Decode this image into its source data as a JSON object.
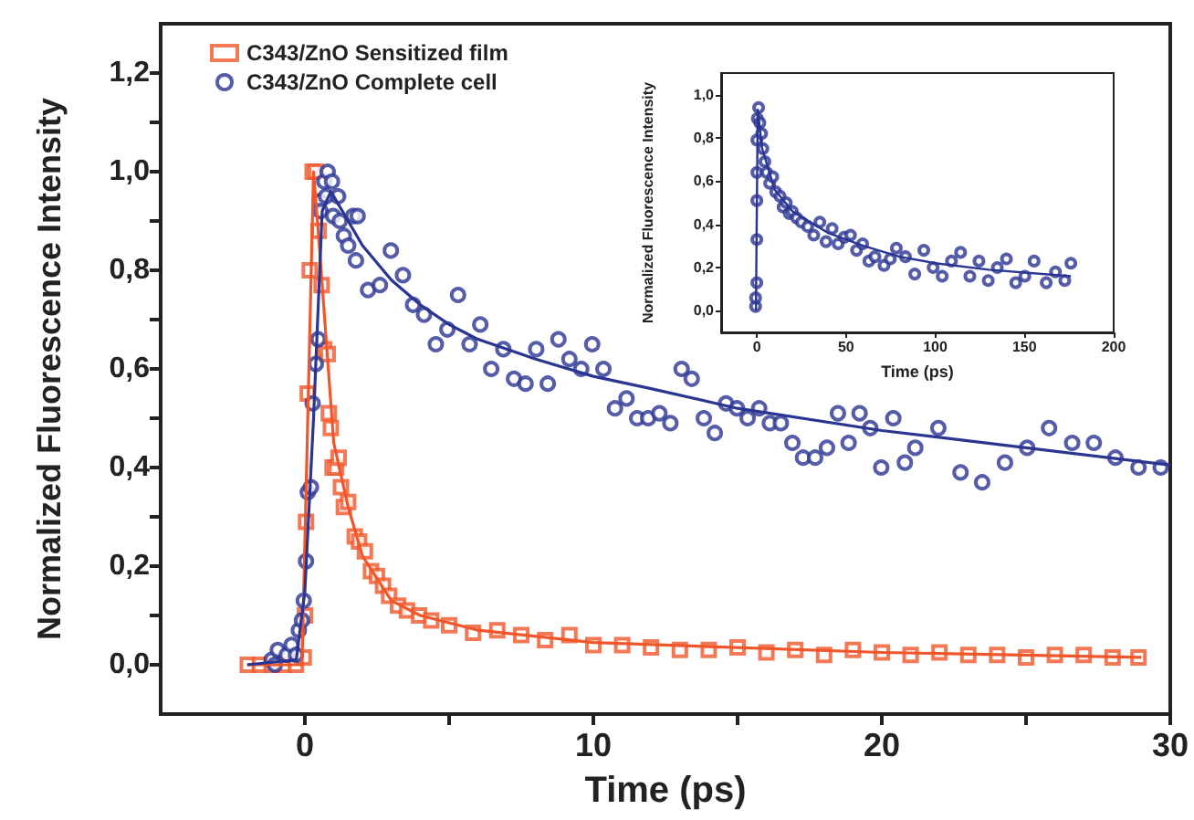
{
  "chart_data": [
    {
      "type": "scatter",
      "xlabel": "Time (ps)",
      "ylabel": "Normalized Fluorescence Intensity",
      "xlim": [
        -5,
        30
      ],
      "ylim": [
        -0.1,
        1.3
      ],
      "xticks": [
        0,
        {
          "value": 5,
          "label": null
        },
        10,
        {
          "value": 15,
          "label": null
        },
        20,
        {
          "value": 25,
          "label": null
        },
        30
      ],
      "yticks": [
        {
          "value": 0,
          "label": "0,0"
        },
        {
          "value": 0.1,
          "label": null
        },
        {
          "value": 0.2,
          "label": "0,2"
        },
        {
          "value": 0.3,
          "label": null
        },
        {
          "value": 0.4,
          "label": "0,4"
        },
        {
          "value": 0.5,
          "label": null
        },
        {
          "value": 0.6,
          "label": "0,6"
        },
        {
          "value": 0.7,
          "label": null
        },
        {
          "value": 0.8,
          "label": "0,8"
        },
        {
          "value": 0.9,
          "label": null
        },
        {
          "value": 1,
          "label": "1,0"
        },
        {
          "value": 1.1,
          "label": null
        },
        {
          "value": 1.2,
          "label": "1,2"
        }
      ],
      "legend": "top left",
      "series": [
        {
          "name": "C343/ZnO Sensitized film",
          "marker": "square",
          "color": "#f0562a",
          "x": [
            -1.98,
            -1.56,
            -1.15,
            -0.73,
            -0.31,
            -0.04,
            0,
            0.04,
            0.1,
            0.17,
            0.27,
            0.38,
            0.48,
            0.58,
            0.67,
            0.79,
            0.83,
            0.9,
            0.96,
            1.08,
            1.17,
            1.25,
            1.35,
            1.5,
            1.73,
            1.88,
            2.08,
            2.29,
            2.5,
            2.71,
            2.92,
            3.23,
            3.54,
            3.96,
            4.38,
            5,
            5.83,
            6.67,
            7.5,
            8.33,
            9.17,
            10,
            11,
            12,
            13,
            14,
            15,
            16,
            17,
            18,
            19,
            20,
            21,
            22,
            23,
            24,
            25,
            26,
            27,
            28,
            28.9
          ],
          "values": [
            0,
            0,
            0,
            0,
            0,
            0.015,
            0.1,
            0.29,
            0.55,
            0.8,
            1,
            1,
            0.88,
            0.77,
            0.64,
            0.63,
            0.51,
            0.48,
            0.4,
            0.4,
            0.42,
            0.36,
            0.32,
            0.33,
            0.26,
            0.25,
            0.23,
            0.19,
            0.18,
            0.16,
            0.14,
            0.12,
            0.11,
            0.1,
            0.09,
            0.08,
            0.065,
            0.07,
            0.06,
            0.05,
            0.06,
            0.04,
            0.04,
            0.035,
            0.03,
            0.03,
            0.035,
            0.025,
            0.03,
            0.02,
            0.03,
            0.025,
            0.02,
            0.025,
            0.02,
            0.02,
            0.015,
            0.02,
            0.02,
            0.015,
            0.015
          ]
        },
        {
          "type": "line",
          "marker": "none",
          "color": "#f0562a",
          "x": [
            -2,
            -0.1,
            0.1,
            0.3,
            0.5,
            1,
            1.5,
            2,
            3,
            4,
            6,
            10,
            20,
            29
          ],
          "values": [
            0,
            0,
            0.5,
            1,
            0.85,
            0.45,
            0.32,
            0.22,
            0.13,
            0.1,
            0.07,
            0.045,
            0.025,
            0.015
          ]
        },
        {
          "name": "C343/ZnO Complete cell",
          "marker": "circle",
          "color": "#2a3592",
          "x": [
            -1.15,
            -1.04,
            -0.94,
            -0.63,
            -0.46,
            -0.31,
            -0.21,
            -0.1,
            -0.04,
            0.04,
            0.1,
            0.21,
            0.27,
            0.38,
            0.46,
            0.52,
            0.54,
            0.67,
            0.73,
            0.79,
            0.94,
            0.98,
            1.15,
            1.21,
            1.35,
            1.5,
            1.67,
            1.77,
            1.83,
            2.19,
            2.6,
            2.98,
            3.4,
            3.75,
            4.13,
            4.54,
            4.94,
            5.31,
            5.71,
            6.08,
            6.46,
            6.88,
            7.25,
            7.65,
            8.02,
            8.42,
            8.79,
            9.17,
            9.58,
            9.96,
            10.35,
            10.75,
            11.15,
            11.52,
            11.9,
            12.29,
            12.67,
            13.06,
            13.41,
            13.83,
            14.21,
            14.6,
            14.98,
            15.35,
            15.75,
            16.12,
            16.5,
            16.9,
            17.27,
            17.69,
            18.1,
            18.48,
            18.85,
            19.23,
            19.6,
            19.98,
            20.4,
            20.8,
            21.16,
            21.96,
            22.73,
            23.48,
            24.27,
            25.04,
            25.8,
            26.6,
            27.35,
            28.1,
            28.9,
            29.67
          ],
          "values": [
            0.01,
            0,
            0.03,
            0.02,
            0.04,
            0.02,
            0.07,
            0.09,
            0.13,
            0.21,
            0.35,
            0.36,
            0.53,
            0.61,
            0.66,
            0.94,
            0.92,
            0.98,
            0.95,
            1,
            0.98,
            0.91,
            0.95,
            0.9,
            0.87,
            0.85,
            0.91,
            0.82,
            0.91,
            0.76,
            0.77,
            0.84,
            0.79,
            0.73,
            0.71,
            0.65,
            0.68,
            0.75,
            0.65,
            0.69,
            0.6,
            0.64,
            0.58,
            0.57,
            0.64,
            0.57,
            0.66,
            0.62,
            0.6,
            0.65,
            0.6,
            0.52,
            0.54,
            0.5,
            0.5,
            0.51,
            0.49,
            0.6,
            0.58,
            0.5,
            0.47,
            0.53,
            0.52,
            0.5,
            0.52,
            0.49,
            0.49,
            0.45,
            0.42,
            0.42,
            0.44,
            0.51,
            0.45,
            0.51,
            0.48,
            0.4,
            0.5,
            0.41,
            0.44,
            0.48,
            0.39,
            0.37,
            0.41,
            0.44,
            0.48,
            0.45,
            0.45,
            0.42,
            0.4,
            0.4
          ]
        },
        {
          "type": "line",
          "marker": "none",
          "color": "#2a3592",
          "x": [
            -2,
            -0.3,
            0,
            0.3,
            0.6,
            0.9,
            1.5,
            2,
            3,
            4,
            5,
            6,
            8,
            10,
            12,
            15,
            20,
            25,
            30
          ],
          "values": [
            0,
            0.01,
            0.15,
            0.5,
            0.92,
            0.96,
            0.9,
            0.85,
            0.78,
            0.73,
            0.69,
            0.66,
            0.62,
            0.585,
            0.56,
            0.52,
            0.475,
            0.44,
            0.405
          ]
        }
      ]
    },
    {
      "type": "scatter",
      "xlabel": "Time (ps)",
      "ylabel": "Normalized Fluorescence Intensity",
      "xlim": [
        -20,
        200
      ],
      "ylim": [
        -0.1,
        1.1
      ],
      "xticks": [
        0,
        50,
        100,
        150,
        200
      ],
      "yticks": [
        {
          "value": 0,
          "label": "0,0"
        },
        {
          "value": 0.2,
          "label": "0,2"
        },
        {
          "value": 0.4,
          "label": "0,4"
        },
        {
          "value": 0.6,
          "label": "0,6"
        },
        {
          "value": 0.8,
          "label": "0,8"
        },
        {
          "value": 1,
          "label": "1,0"
        }
      ],
      "series": [
        {
          "marker": "circle",
          "color": "#2a3592",
          "x": [
            -0.7,
            -0.7,
            0,
            0,
            0,
            0,
            0,
            0.3,
            1,
            1.7,
            2.7,
            3.4,
            4.5,
            5.5,
            7.2,
            8.9,
            10.6,
            13,
            14.7,
            16.5,
            18.2,
            19.9,
            22.3,
            25,
            28.5,
            31.9,
            35.3,
            38.8,
            42.2,
            45.6,
            49,
            52.5,
            55.9,
            59.3,
            62.8,
            66.2,
            71.3,
            74.8,
            78.2,
            83.3,
            88.5,
            93.6,
            98.8,
            103.9,
            109.1,
            114.2,
            119.4,
            124.5,
            129.7,
            134.8,
            139.9,
            145.1,
            150.2,
            155.4,
            162.2,
            167.4,
            172.6,
            176
          ],
          "values": [
            0.02,
            0.06,
            0.13,
            0.33,
            0.51,
            0.64,
            0.79,
            0.89,
            0.94,
            0.87,
            0.82,
            0.75,
            0.69,
            0.64,
            0.59,
            0.62,
            0.55,
            0.53,
            0.48,
            0.5,
            0.45,
            0.46,
            0.43,
            0.41,
            0.39,
            0.35,
            0.41,
            0.32,
            0.38,
            0.31,
            0.34,
            0.35,
            0.28,
            0.31,
            0.23,
            0.25,
            0.21,
            0.24,
            0.29,
            0.25,
            0.17,
            0.28,
            0.2,
            0.16,
            0.23,
            0.27,
            0.16,
            0.23,
            0.14,
            0.2,
            0.24,
            0.13,
            0.16,
            0.23,
            0.13,
            0.18,
            0.14,
            0.22
          ]
        },
        {
          "type": "line",
          "marker": "none",
          "color": "#2a3592",
          "x": [
            -0.5,
            0.5,
            3,
            10,
            20,
            40,
            60,
            80,
            100,
            130,
            176
          ],
          "values": [
            0,
            0.93,
            0.75,
            0.56,
            0.46,
            0.36,
            0.3,
            0.25,
            0.22,
            0.19,
            0.16
          ]
        }
      ]
    }
  ]
}
